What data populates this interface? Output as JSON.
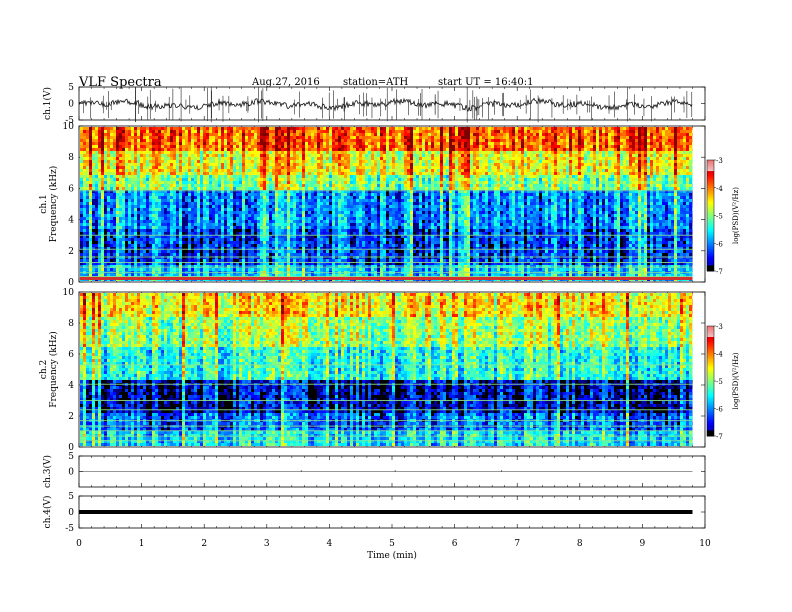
{
  "header": {
    "title": "VLF  Spectra",
    "date": "Aug.27, 2016",
    "station": "station=ATH",
    "start": "start  UT  =    16:40:1"
  },
  "chart_data": [
    {
      "type": "line",
      "panel": "ch1-waveform",
      "ylabel": "ch.1(V)",
      "ylim": [
        -5,
        5
      ],
      "yticks": [
        "5",
        "0",
        "-5"
      ],
      "xlim": [
        0,
        10
      ],
      "x_extent": 9.8
    },
    {
      "type": "heatmap",
      "panel": "ch1-spectrogram",
      "ylabel": "ch.1\nFrequency (kHz)",
      "ylabel_lines": [
        "ch.1",
        "Frequency  (kHz)"
      ],
      "ylim": [
        0,
        10
      ],
      "yticks": [
        "0",
        "2",
        "4",
        "6",
        "8",
        "10"
      ],
      "xlim": [
        0,
        10
      ],
      "x_extent": 9.8,
      "colorbar": {
        "label": "log(PSD)(V²/Hz)",
        "range": [
          -7,
          -3
        ],
        "ticks": [
          "-3",
          "-4",
          "-5",
          "-6",
          "-7"
        ]
      }
    },
    {
      "type": "heatmap",
      "panel": "ch2-spectrogram",
      "ylabel": "ch.2\nFrequency (kHz)",
      "ylabel_lines": [
        "ch.2",
        "Frequency  (kHz)"
      ],
      "ylim": [
        0,
        10
      ],
      "yticks": [
        "0",
        "2",
        "4",
        "6",
        "8",
        "10"
      ],
      "xlim": [
        0,
        10
      ],
      "x_extent": 9.8,
      "colorbar": {
        "label": "log(PSD)(V²/Hz)",
        "range": [
          -7,
          -3
        ],
        "ticks": [
          "-3",
          "-4",
          "-5",
          "-6",
          "-7"
        ]
      }
    },
    {
      "type": "line",
      "panel": "ch3-waveform",
      "ylabel": "ch.3(V)",
      "ylim": [
        -5,
        5
      ],
      "yticks": [
        "5",
        "0"
      ],
      "xlim": [
        0,
        10
      ],
      "x_extent": 9.8
    },
    {
      "type": "line",
      "panel": "ch4-waveform",
      "ylabel": "ch.4(V)",
      "ylim": [
        -5,
        5
      ],
      "yticks": [
        "5",
        "0",
        "-5"
      ],
      "xlim": [
        0,
        10
      ],
      "x_extent": 9.8
    }
  ],
  "xaxis": {
    "label": "Time  (min)",
    "ticks": [
      "0",
      "1",
      "2",
      "3",
      "4",
      "5",
      "6",
      "7",
      "8",
      "9",
      "10"
    ]
  }
}
